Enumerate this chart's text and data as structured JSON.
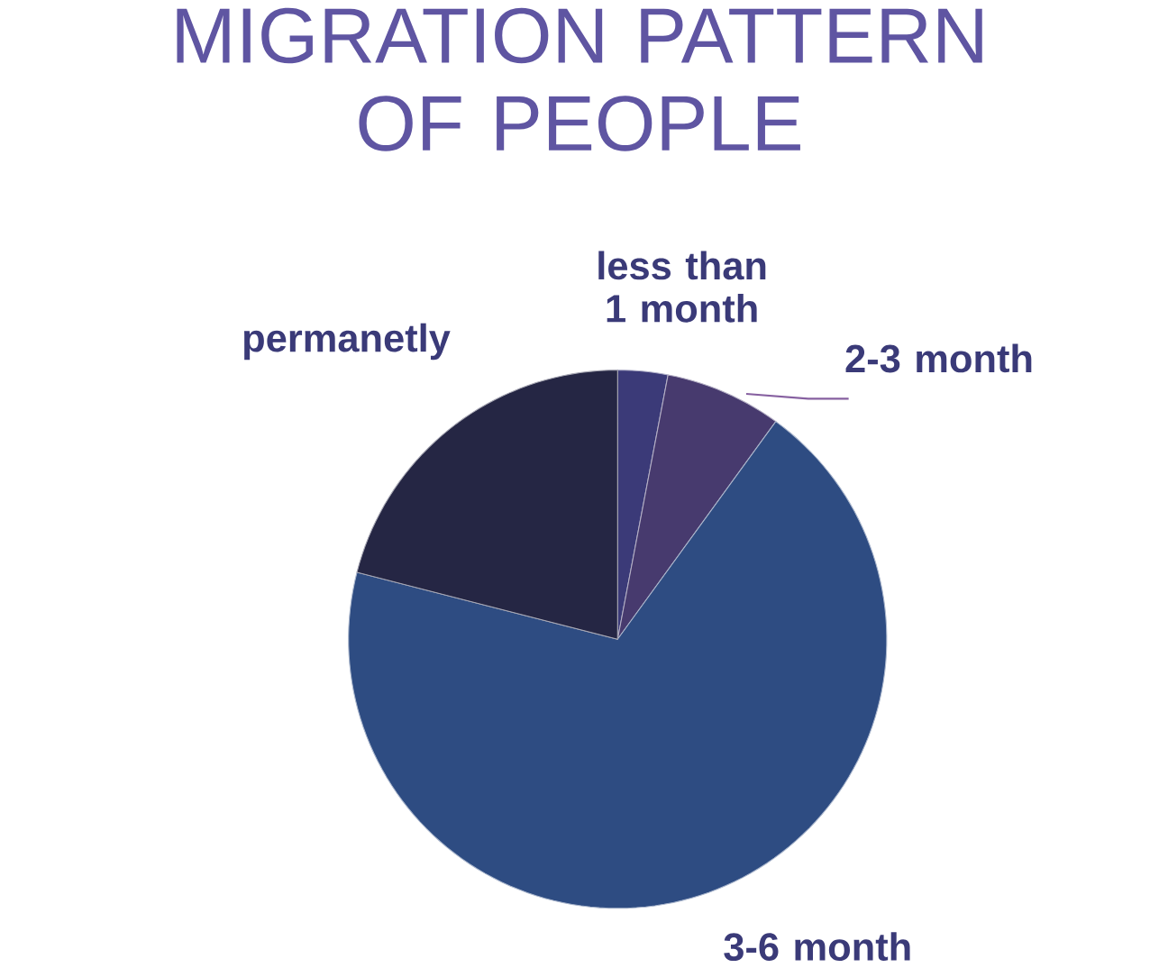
{
  "chart_data": {
    "type": "pie",
    "title": "MIGRATION PATTERN OF PEOPLE",
    "categories": [
      "less than 1 month",
      "2-3 month",
      "3-6 month",
      "permanetly"
    ],
    "values": [
      3,
      7,
      69,
      21
    ],
    "colors": [
      "#3b3a78",
      "#473a6e",
      "#2e4c82",
      "#252644"
    ]
  }
}
